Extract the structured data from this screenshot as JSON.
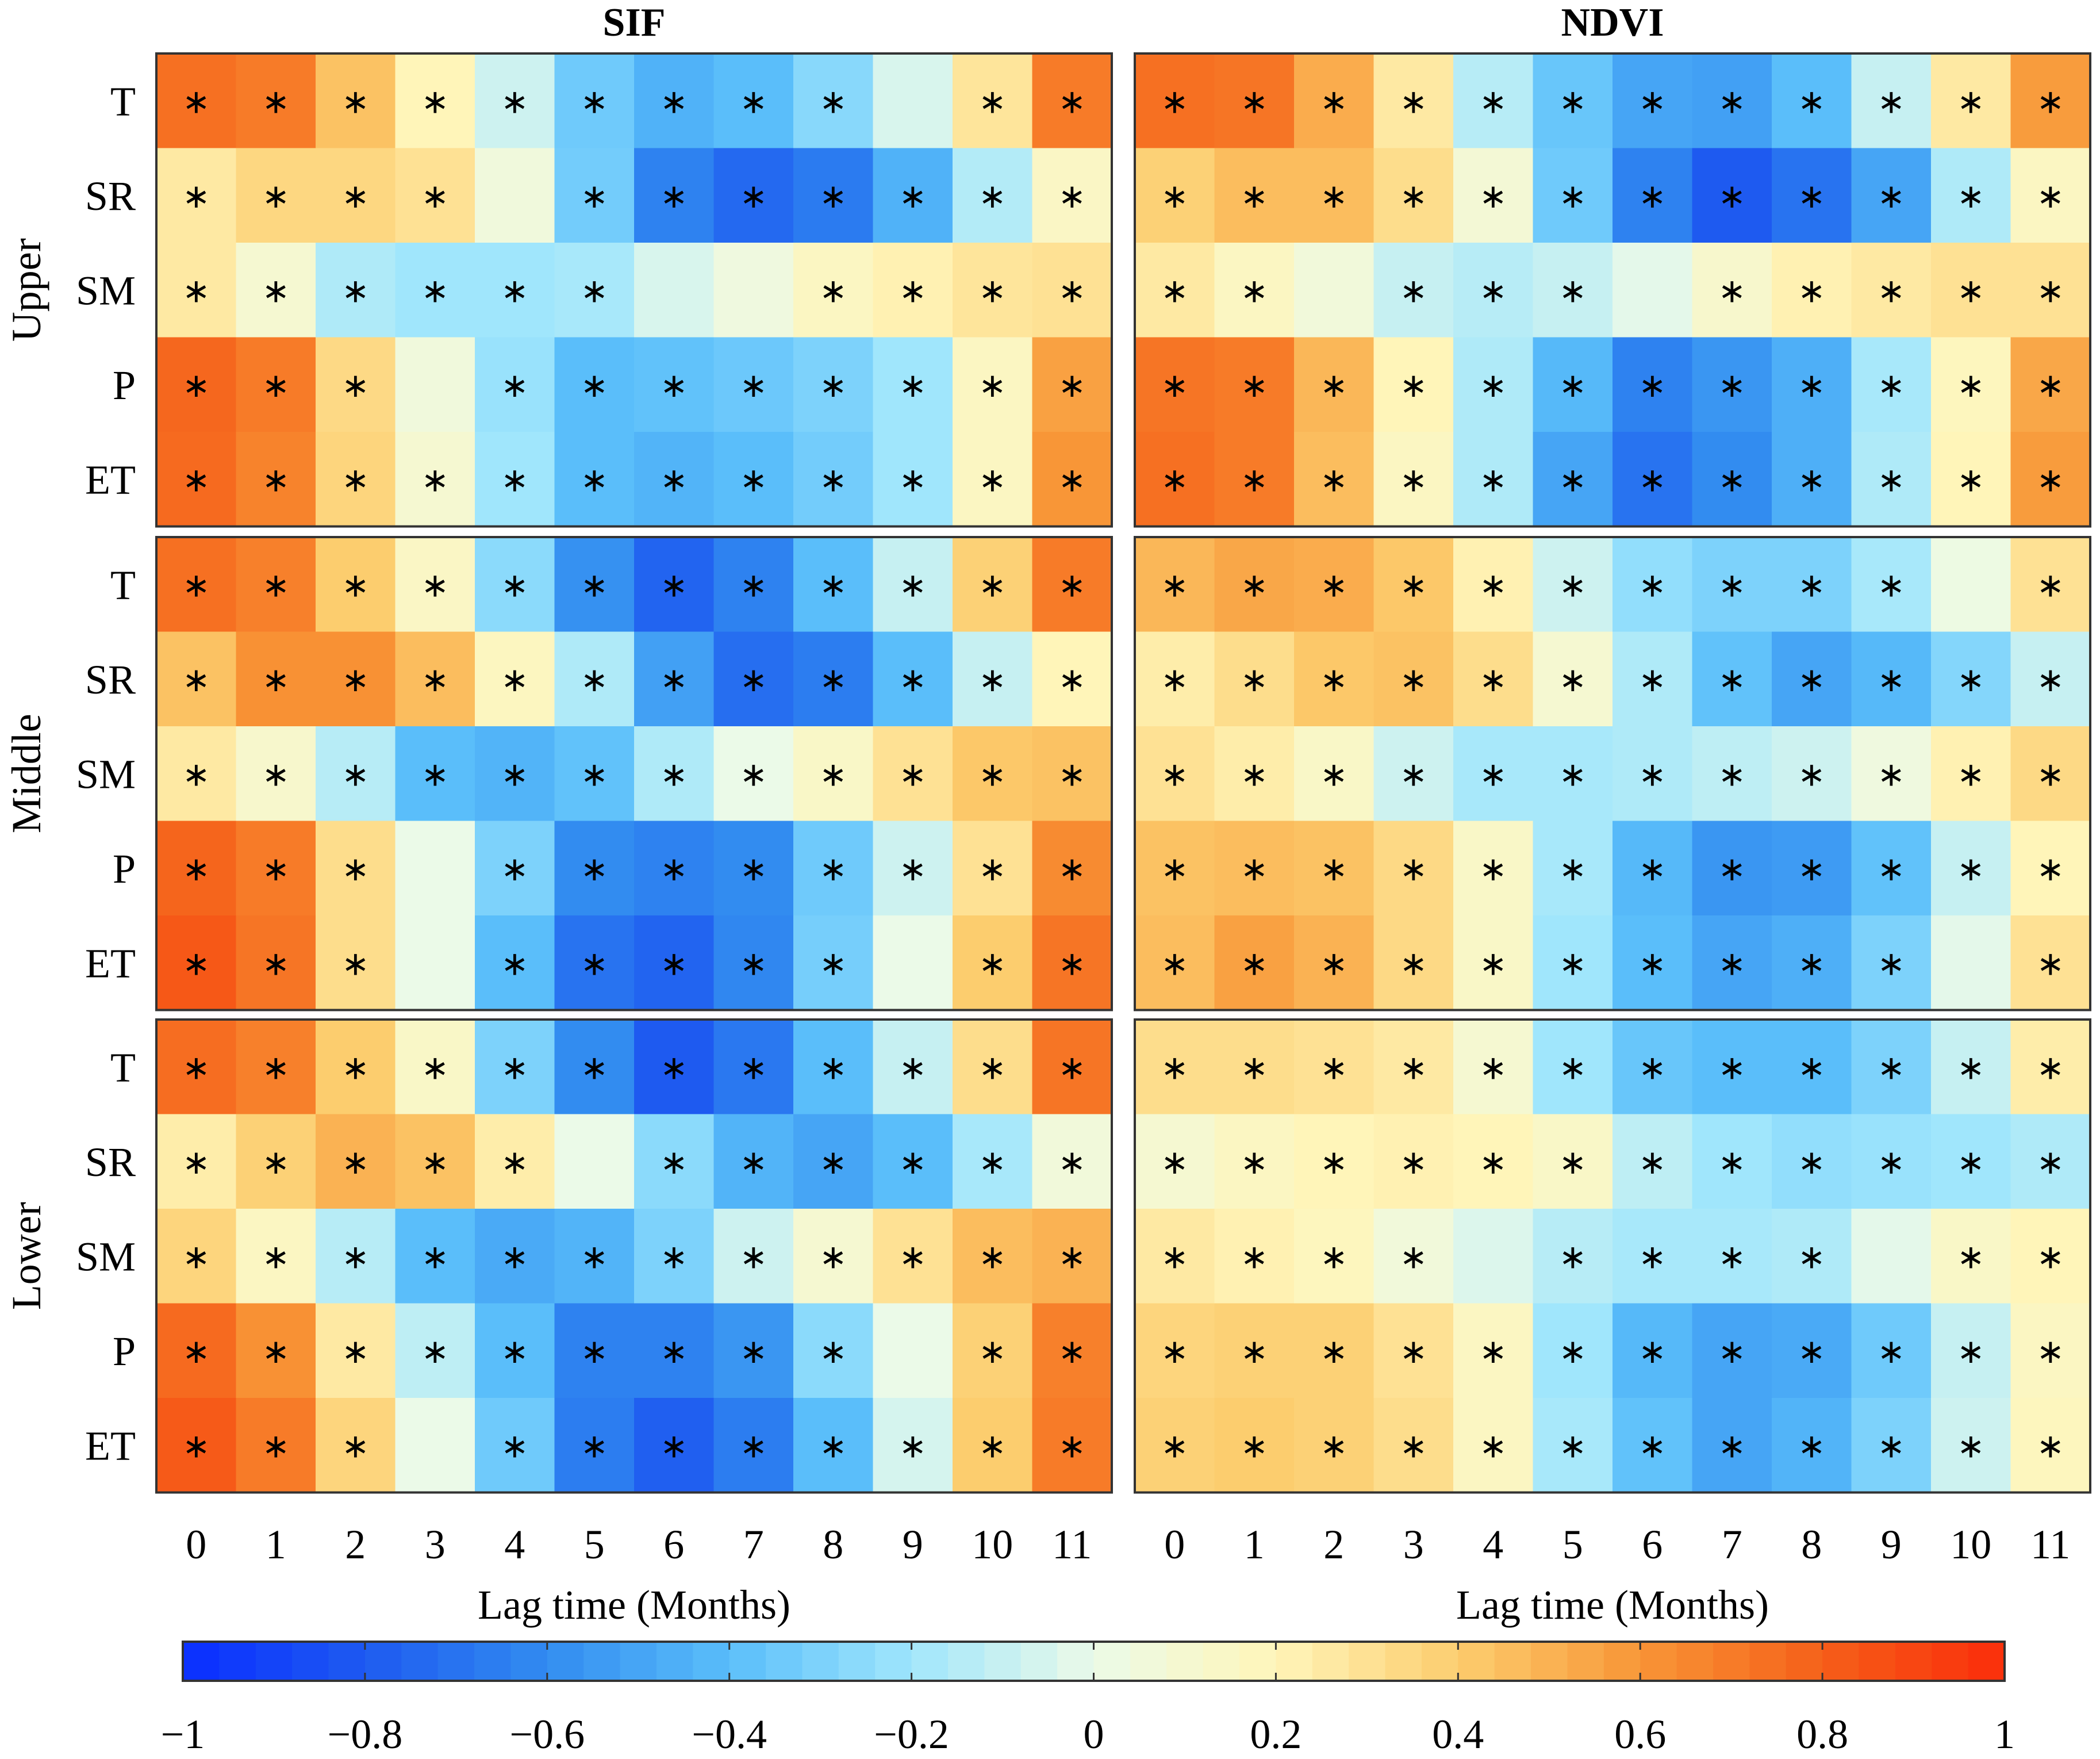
{
  "chart_data": {
    "type": "heatmap",
    "panel_titles": [
      "SIF",
      "NDVI"
    ],
    "regions": [
      "Upper",
      "Middle",
      "Lower"
    ],
    "variables": [
      "T",
      "SR",
      "SM",
      "P",
      "ET"
    ],
    "lags": [
      "0",
      "1",
      "2",
      "3",
      "4",
      "5",
      "6",
      "7",
      "8",
      "9",
      "10",
      "11"
    ],
    "xlabel": "Lag time (Months)",
    "colorbar": {
      "range": [
        -1,
        1
      ],
      "ticks": [
        "−1",
        "−0.8",
        "−0.6",
        "−0.4",
        "−0.2",
        "0",
        "0.2",
        "0.4",
        "0.6",
        "0.8",
        "1"
      ],
      "steps": 50
    },
    "significance_marker": "∗",
    "panels": {
      "SIF": {
        "Upper": {
          "values": [
            [
              0.74,
              0.7,
              0.44,
              0.2,
              -0.08,
              -0.34,
              -0.45,
              -0.4,
              -0.27,
              -0.05,
              0.28,
              0.7
            ],
            [
              0.26,
              0.35,
              0.35,
              0.3,
              0.05,
              -0.33,
              -0.64,
              -0.74,
              -0.67,
              -0.45,
              -0.15,
              0.15
            ],
            [
              0.26,
              0.1,
              -0.16,
              -0.2,
              -0.2,
              -0.18,
              -0.05,
              0.04,
              0.16,
              0.22,
              0.28,
              0.3
            ],
            [
              0.77,
              0.7,
              0.34,
              0.05,
              -0.22,
              -0.4,
              -0.38,
              -0.35,
              -0.3,
              -0.2,
              0.16,
              0.56
            ],
            [
              0.76,
              0.67,
              0.36,
              0.1,
              -0.2,
              -0.4,
              -0.44,
              -0.4,
              -0.33,
              -0.2,
              0.16,
              0.6
            ]
          ],
          "sig": [
            [
              1,
              1,
              1,
              1,
              1,
              1,
              1,
              1,
              1,
              0,
              1,
              1
            ],
            [
              1,
              1,
              1,
              1,
              0,
              1,
              1,
              1,
              1,
              1,
              1,
              1
            ],
            [
              1,
              1,
              1,
              1,
              1,
              1,
              0,
              0,
              1,
              1,
              1,
              1
            ],
            [
              1,
              1,
              1,
              0,
              1,
              1,
              1,
              1,
              1,
              1,
              1,
              1
            ],
            [
              1,
              1,
              1,
              1,
              1,
              1,
              1,
              1,
              1,
              1,
              1,
              1
            ]
          ]
        },
        "Middle": {
          "values": [
            [
              0.74,
              0.68,
              0.4,
              0.15,
              -0.26,
              -0.58,
              -0.76,
              -0.64,
              -0.4,
              -0.1,
              0.38,
              0.7
            ],
            [
              0.44,
              0.62,
              0.62,
              0.46,
              0.17,
              -0.16,
              -0.52,
              -0.72,
              -0.66,
              -0.4,
              -0.1,
              0.2
            ],
            [
              0.26,
              0.12,
              -0.14,
              -0.4,
              -0.44,
              -0.38,
              -0.16,
              0.0,
              0.14,
              0.3,
              0.42,
              0.44
            ],
            [
              0.78,
              0.7,
              0.32,
              0.0,
              -0.3,
              -0.6,
              -0.64,
              -0.6,
              -0.34,
              -0.08,
              0.3,
              0.64
            ],
            [
              0.83,
              0.72,
              0.32,
              0.0,
              -0.4,
              -0.7,
              -0.76,
              -0.62,
              -0.32,
              0.0,
              0.4,
              0.72
            ]
          ],
          "sig": [
            [
              1,
              1,
              1,
              1,
              1,
              1,
              1,
              1,
              1,
              1,
              1,
              1
            ],
            [
              1,
              1,
              1,
              1,
              1,
              1,
              1,
              1,
              1,
              1,
              1,
              1
            ],
            [
              1,
              1,
              1,
              1,
              1,
              1,
              1,
              1,
              1,
              1,
              1,
              1
            ],
            [
              1,
              1,
              1,
              0,
              1,
              1,
              1,
              1,
              1,
              1,
              1,
              1
            ],
            [
              1,
              1,
              1,
              0,
              1,
              1,
              1,
              1,
              1,
              0,
              1,
              1
            ]
          ]
        },
        "Lower": {
          "values": [
            [
              0.75,
              0.68,
              0.4,
              0.14,
              -0.3,
              -0.6,
              -0.8,
              -0.68,
              -0.4,
              -0.1,
              0.32,
              0.72
            ],
            [
              0.24,
              0.38,
              0.5,
              0.44,
              0.24,
              0.0,
              -0.26,
              -0.44,
              -0.5,
              -0.4,
              -0.18,
              0.06
            ],
            [
              0.36,
              0.16,
              -0.14,
              -0.4,
              -0.48,
              -0.44,
              -0.3,
              -0.08,
              0.1,
              0.3,
              0.46,
              0.5
            ],
            [
              0.76,
              0.62,
              0.26,
              -0.12,
              -0.4,
              -0.64,
              -0.64,
              -0.56,
              -0.26,
              0.0,
              0.38,
              0.68
            ],
            [
              0.82,
              0.7,
              0.36,
              0.0,
              -0.34,
              -0.66,
              -0.78,
              -0.66,
              -0.4,
              -0.06,
              0.4,
              0.7
            ]
          ],
          "sig": [
            [
              1,
              1,
              1,
              1,
              1,
              1,
              1,
              1,
              1,
              1,
              1,
              1
            ],
            [
              1,
              1,
              1,
              1,
              1,
              0,
              1,
              1,
              1,
              1,
              1,
              1
            ],
            [
              1,
              1,
              1,
              1,
              1,
              1,
              1,
              1,
              1,
              1,
              1,
              1
            ],
            [
              1,
              1,
              1,
              1,
              1,
              1,
              1,
              1,
              1,
              0,
              1,
              1
            ],
            [
              1,
              1,
              1,
              0,
              1,
              1,
              1,
              1,
              1,
              1,
              1,
              1
            ]
          ]
        }
      },
      "NDVI": {
        "Upper": {
          "values": [
            [
              0.74,
              0.72,
              0.52,
              0.26,
              -0.14,
              -0.36,
              -0.5,
              -0.52,
              -0.4,
              -0.1,
              0.26,
              0.58
            ],
            [
              0.38,
              0.46,
              0.46,
              0.32,
              0.08,
              -0.34,
              -0.64,
              -0.8,
              -0.7,
              -0.5,
              -0.16,
              0.16
            ],
            [
              0.26,
              0.16,
              0.06,
              -0.1,
              -0.14,
              -0.1,
              -0.02,
              0.12,
              0.22,
              0.26,
              0.3,
              0.3
            ],
            [
              0.72,
              0.7,
              0.48,
              0.2,
              -0.16,
              -0.42,
              -0.64,
              -0.56,
              -0.46,
              -0.18,
              0.18,
              0.54
            ],
            [
              0.74,
              0.7,
              0.46,
              0.16,
              -0.16,
              -0.5,
              -0.7,
              -0.6,
              -0.46,
              -0.16,
              0.2,
              0.58
            ]
          ],
          "sig": [
            [
              1,
              1,
              1,
              1,
              1,
              1,
              1,
              1,
              1,
              1,
              1,
              1
            ],
            [
              1,
              1,
              1,
              1,
              1,
              1,
              1,
              1,
              1,
              1,
              1,
              1
            ],
            [
              1,
              1,
              0,
              1,
              1,
              1,
              0,
              1,
              1,
              1,
              1,
              1
            ],
            [
              1,
              1,
              1,
              1,
              1,
              1,
              1,
              1,
              1,
              1,
              1,
              1
            ],
            [
              1,
              1,
              1,
              1,
              1,
              1,
              1,
              1,
              1,
              1,
              1,
              1
            ]
          ]
        },
        "Middle": {
          "values": [
            [
              0.48,
              0.54,
              0.52,
              0.42,
              0.22,
              -0.08,
              -0.24,
              -0.3,
              -0.3,
              -0.18,
              0.02,
              0.3
            ],
            [
              0.24,
              0.32,
              0.42,
              0.44,
              0.32,
              0.1,
              -0.16,
              -0.38,
              -0.5,
              -0.42,
              -0.28,
              -0.1
            ],
            [
              0.3,
              0.24,
              0.14,
              -0.08,
              -0.18,
              -0.18,
              -0.16,
              -0.12,
              -0.08,
              0.04,
              0.22,
              0.34
            ],
            [
              0.44,
              0.46,
              0.44,
              0.34,
              0.14,
              -0.18,
              -0.42,
              -0.56,
              -0.54,
              -0.38,
              -0.1,
              0.2
            ],
            [
              0.46,
              0.56,
              0.5,
              0.34,
              0.14,
              -0.2,
              -0.4,
              -0.5,
              -0.46,
              -0.3,
              -0.02,
              0.3
            ]
          ],
          "sig": [
            [
              1,
              1,
              1,
              1,
              1,
              1,
              1,
              1,
              1,
              1,
              0,
              1
            ],
            [
              1,
              1,
              1,
              1,
              1,
              1,
              1,
              1,
              1,
              1,
              1,
              1
            ],
            [
              1,
              1,
              1,
              1,
              1,
              1,
              1,
              1,
              1,
              1,
              1,
              1
            ],
            [
              1,
              1,
              1,
              1,
              1,
              1,
              1,
              1,
              1,
              1,
              1,
              1
            ],
            [
              1,
              1,
              1,
              1,
              1,
              1,
              1,
              1,
              1,
              1,
              0,
              1
            ]
          ]
        },
        "Lower": {
          "values": [
            [
              0.32,
              0.32,
              0.3,
              0.26,
              0.1,
              -0.2,
              -0.36,
              -0.4,
              -0.4,
              -0.3,
              -0.1,
              0.24
            ],
            [
              0.1,
              0.16,
              0.2,
              0.22,
              0.2,
              0.14,
              -0.12,
              -0.2,
              -0.24,
              -0.22,
              -0.2,
              -0.16
            ],
            [
              0.26,
              0.22,
              0.18,
              0.06,
              -0.04,
              -0.14,
              -0.18,
              -0.18,
              -0.16,
              -0.02,
              0.14,
              0.2
            ],
            [
              0.36,
              0.38,
              0.38,
              0.3,
              0.16,
              -0.2,
              -0.42,
              -0.5,
              -0.48,
              -0.34,
              -0.1,
              0.16
            ],
            [
              0.38,
              0.4,
              0.38,
              0.32,
              0.16,
              -0.18,
              -0.38,
              -0.5,
              -0.44,
              -0.3,
              -0.08,
              0.18
            ]
          ],
          "sig": [
            [
              1,
              1,
              1,
              1,
              1,
              1,
              1,
              1,
              1,
              1,
              1,
              1
            ],
            [
              1,
              1,
              1,
              1,
              1,
              1,
              1,
              1,
              1,
              1,
              1,
              1
            ],
            [
              1,
              1,
              1,
              1,
              0,
              1,
              1,
              1,
              1,
              0,
              1,
              1
            ],
            [
              1,
              1,
              1,
              1,
              1,
              1,
              1,
              1,
              1,
              1,
              1,
              1
            ],
            [
              1,
              1,
              1,
              1,
              1,
              1,
              1,
              1,
              1,
              1,
              1,
              1
            ]
          ]
        }
      }
    }
  }
}
